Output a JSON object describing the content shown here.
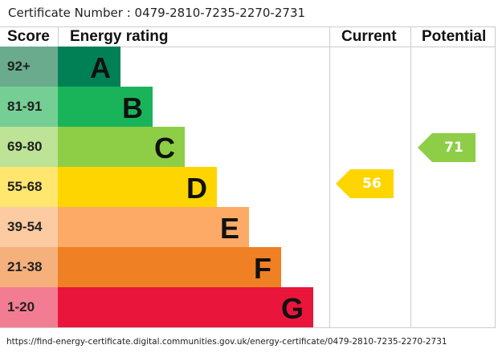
{
  "certificate": {
    "label": "Certificate Number : 0479-2810-7235-2270-2731"
  },
  "footer": {
    "url": "https://find-energy-certificate.digital.communities.gov.uk/energy-certificate/0479-2810-7235-2270-2731"
  },
  "chart_data": {
    "type": "table",
    "headers": {
      "score": "Score",
      "rating": "Energy rating",
      "current": "Current",
      "potential": "Potential"
    },
    "bands": [
      {
        "letter": "A",
        "range": "92+",
        "color": "#008054",
        "score_color": "#6aab8e"
      },
      {
        "letter": "B",
        "range": "81-91",
        "color": "#19b459",
        "score_color": "#75cf94"
      },
      {
        "letter": "C",
        "range": "69-80",
        "color": "#8dce46",
        "score_color": "#bce396"
      },
      {
        "letter": "D",
        "range": "55-68",
        "color": "#ffd500",
        "score_color": "#ffe66e"
      },
      {
        "letter": "E",
        "range": "39-54",
        "color": "#fcaa65",
        "score_color": "#fdcba2"
      },
      {
        "letter": "F",
        "range": "21-38",
        "color": "#ef8023",
        "score_color": "#f5b07c"
      },
      {
        "letter": "G",
        "range": "1-20",
        "color": "#e9153b",
        "score_color": "#f27c92"
      }
    ],
    "current": {
      "value": "56",
      "band": "D",
      "color": "#ffd500"
    },
    "potential": {
      "value": "71",
      "band": "C",
      "color": "#8dce46"
    }
  }
}
